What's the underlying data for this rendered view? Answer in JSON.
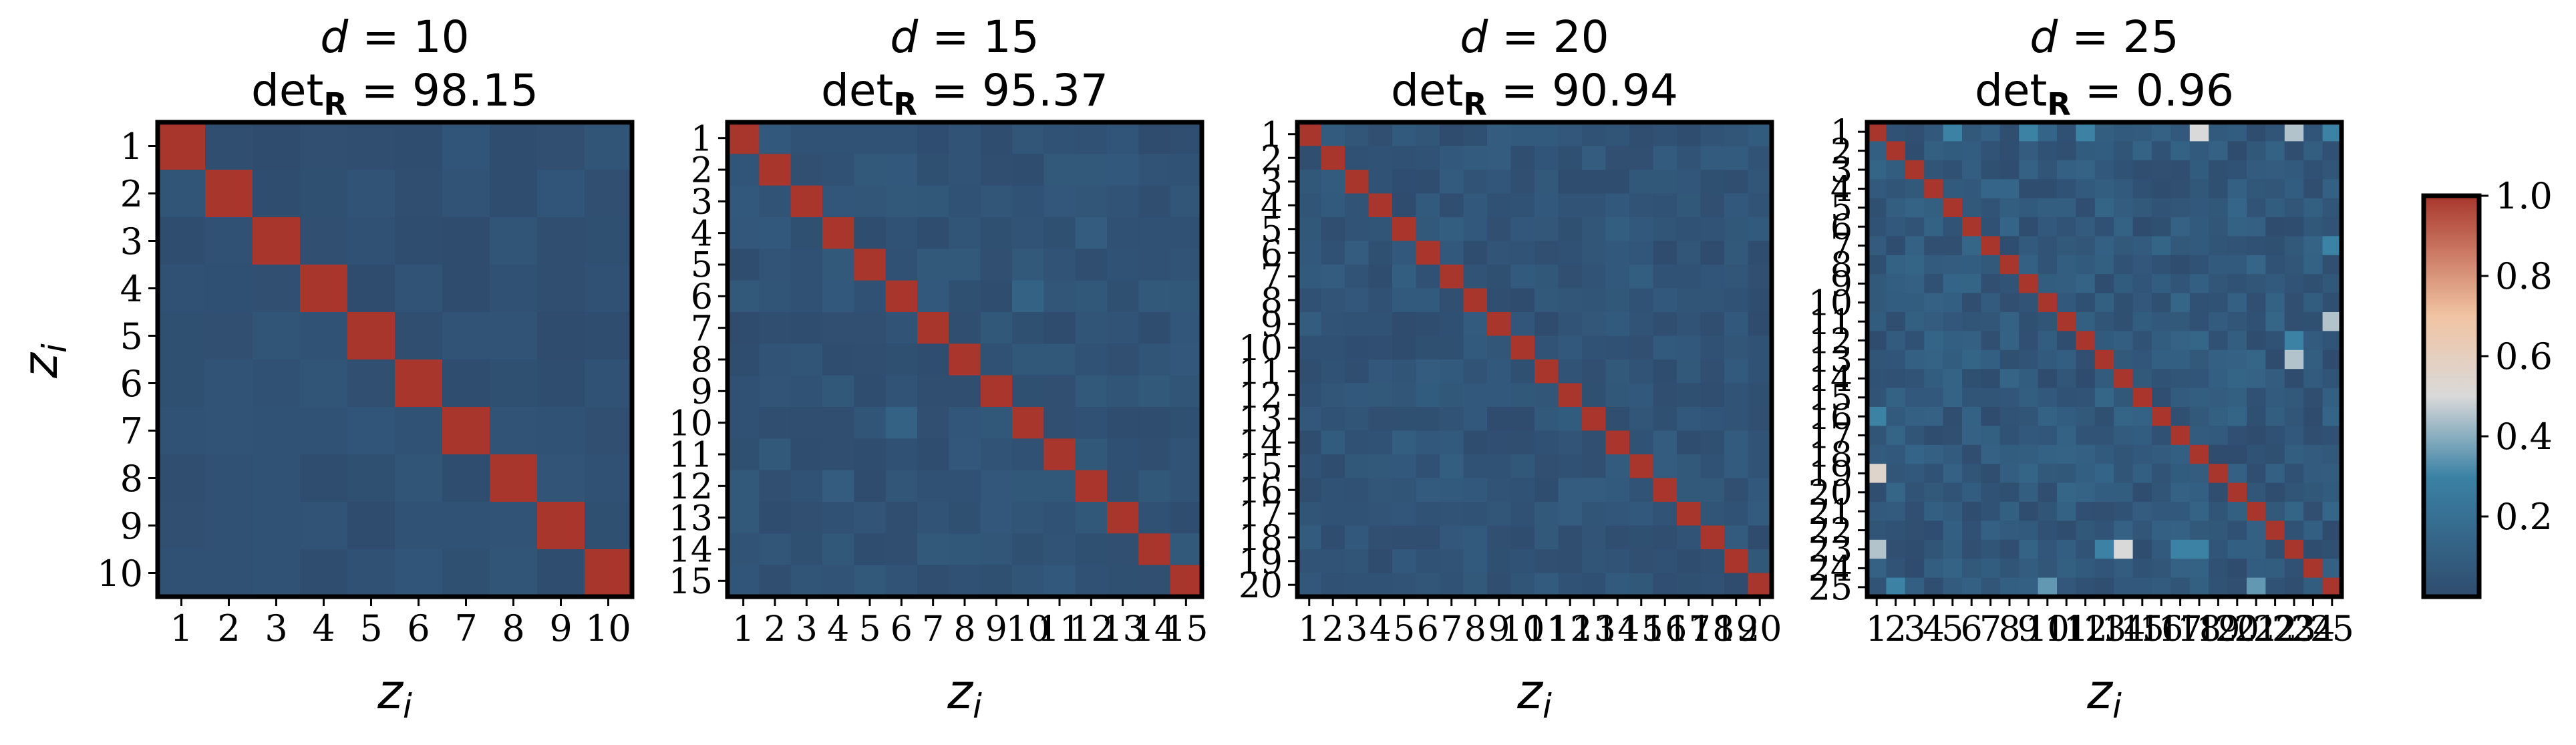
{
  "figure": {
    "ylabel_var": "z",
    "ylabel_sub": "i"
  },
  "chart_data": [
    {
      "type": "heatmap",
      "title_var": "d",
      "title_value": "= 10",
      "subtitle_prefix": "det",
      "subtitle_sub": "R",
      "subtitle_value": "= 98.15",
      "dimension": 10,
      "tick_labels": [
        "1",
        "2",
        "3",
        "4",
        "5",
        "6",
        "7",
        "8",
        "9",
        "10"
      ],
      "xlabel_var": "z",
      "xlabel_sub": "i",
      "diagonal_value": 1.0,
      "off_diagonal_base": 0.03,
      "highlights": []
    },
    {
      "type": "heatmap",
      "title_var": "d",
      "title_value": "= 15",
      "subtitle_prefix": "det",
      "subtitle_sub": "R",
      "subtitle_value": "= 95.37",
      "dimension": 15,
      "tick_labels": [
        "1",
        "2",
        "3",
        "4",
        "5",
        "6",
        "7",
        "8",
        "9",
        "10",
        "11",
        "12",
        "13",
        "14",
        "15"
      ],
      "xlabel_var": "z",
      "xlabel_sub": "i",
      "diagonal_value": 1.0,
      "off_diagonal_base": 0.04,
      "highlights": [
        {
          "row": 6,
          "col": 10,
          "value": 0.12
        },
        {
          "row": 10,
          "col": 6,
          "value": 0.12
        },
        {
          "row": 12,
          "col": 4,
          "value": 0.09
        },
        {
          "row": 4,
          "col": 12,
          "value": 0.09
        }
      ]
    },
    {
      "type": "heatmap",
      "title_var": "d",
      "title_value": "= 20",
      "subtitle_prefix": "det",
      "subtitle_sub": "R",
      "subtitle_value": "= 90.94",
      "dimension": 20,
      "tick_labels": [
        "1",
        "2",
        "3",
        "4",
        "5",
        "6",
        "7",
        "8",
        "9",
        "10",
        "11",
        "12",
        "13",
        "14",
        "15",
        "16",
        "17",
        "18",
        "19",
        "20"
      ],
      "xlabel_var": "z",
      "xlabel_sub": "i",
      "diagonal_value": 1.0,
      "off_diagonal_base": 0.05,
      "highlights": [
        {
          "row": 5,
          "col": 7,
          "value": 0.1
        },
        {
          "row": 7,
          "col": 5,
          "value": 0.1
        },
        {
          "row": 14,
          "col": 5,
          "value": 0.1
        },
        {
          "row": 5,
          "col": 14,
          "value": 0.1
        },
        {
          "row": 7,
          "col": 15,
          "value": 0.1
        },
        {
          "row": 15,
          "col": 7,
          "value": 0.1
        }
      ]
    },
    {
      "type": "heatmap",
      "title_var": "d",
      "title_value": "= 25",
      "subtitle_prefix": "det",
      "subtitle_sub": "R",
      "subtitle_value": "= 0.96",
      "dimension": 25,
      "tick_labels": [
        "1",
        "2",
        "3",
        "4",
        "5",
        "6",
        "7",
        "8",
        "9",
        "10",
        "11",
        "12",
        "13",
        "14",
        "15",
        "16",
        "17",
        "18",
        "19",
        "20",
        "21",
        "22",
        "23",
        "24",
        "25"
      ],
      "xlabel_var": "z",
      "xlabel_sub": "i",
      "diagonal_value": 1.0,
      "off_diagonal_base": 0.08,
      "highlights": [
        {
          "row": 1,
          "col": 18,
          "value": 0.5
        },
        {
          "row": 1,
          "col": 23,
          "value": 0.45
        },
        {
          "row": 1,
          "col": 5,
          "value": 0.3
        },
        {
          "row": 1,
          "col": 9,
          "value": 0.3
        },
        {
          "row": 1,
          "col": 12,
          "value": 0.3
        },
        {
          "row": 1,
          "col": 25,
          "value": 0.3
        },
        {
          "row": 13,
          "col": 23,
          "value": 0.45
        },
        {
          "row": 19,
          "col": 1,
          "value": 0.55
        },
        {
          "row": 23,
          "col": 1,
          "value": 0.45
        },
        {
          "row": 23,
          "col": 14,
          "value": 0.5
        },
        {
          "row": 23,
          "col": 18,
          "value": 0.3
        },
        {
          "row": 23,
          "col": 13,
          "value": 0.3
        },
        {
          "row": 23,
          "col": 17,
          "value": 0.3
        },
        {
          "row": 25,
          "col": 10,
          "value": 0.35
        },
        {
          "row": 25,
          "col": 21,
          "value": 0.35
        },
        {
          "row": 11,
          "col": 25,
          "value": 0.45
        },
        {
          "row": 7,
          "col": 25,
          "value": 0.3
        },
        {
          "row": 12,
          "col": 23,
          "value": 0.3
        },
        {
          "row": 16,
          "col": 1,
          "value": 0.3
        },
        {
          "row": 25,
          "col": 2,
          "value": 0.3
        }
      ]
    }
  ],
  "colorbar": {
    "ticks": [
      "0.2",
      "0.4",
      "0.6",
      "0.8",
      "1.0"
    ],
    "tick_values": [
      0.2,
      0.4,
      0.6,
      0.8,
      1.0
    ],
    "range": [
      0.0,
      1.0
    ],
    "colors": {
      "low": "#2f4c6e",
      "mid_low": "#3b82a5",
      "mid": "#d9d9d9",
      "mid_high": "#f1c4a3",
      "high": "#a8362d"
    }
  }
}
